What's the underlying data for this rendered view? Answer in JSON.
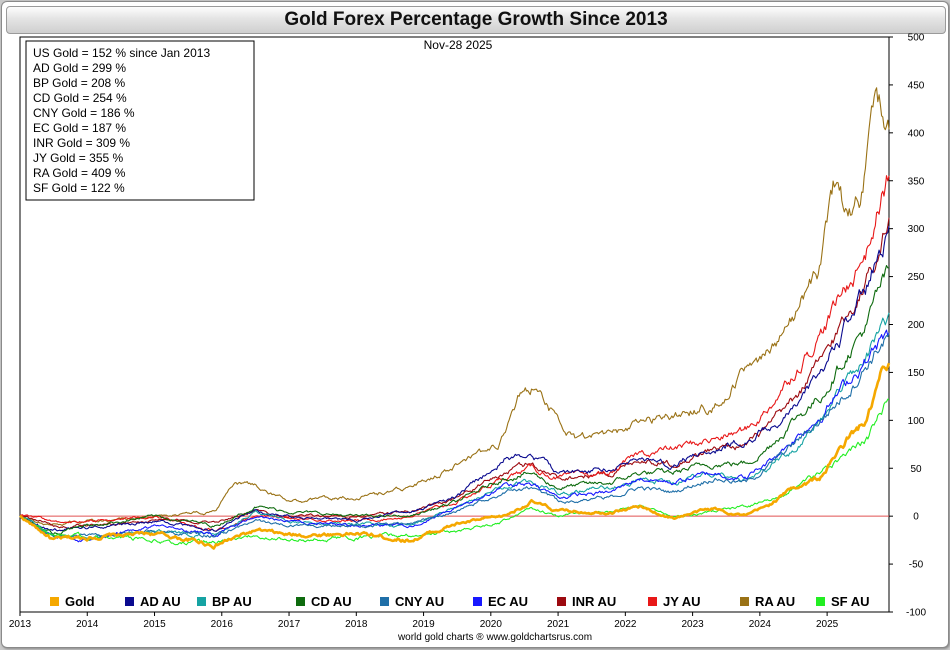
{
  "chart_data": {
    "type": "line",
    "title": "Gold Forex Percentage Growth Since 2013",
    "date_label": "Nov-28  2025",
    "footer": "world gold charts ® www.goldchartsrus.com",
    "x_ticks": [
      "2013",
      "2014",
      "2015",
      "2016",
      "2017",
      "2018",
      "2019",
      "2020",
      "2021",
      "2022",
      "2023",
      "2024",
      "2025"
    ],
    "x_range": [
      2013.0,
      2025.92
    ],
    "ylim": [
      -100,
      500
    ],
    "y_ticks": [
      "500",
      "450",
      "400",
      "350",
      "300",
      "250",
      "200",
      "150",
      "100",
      "50",
      "0",
      "-50",
      "-100"
    ],
    "y_tick_values": [
      500,
      450,
      400,
      350,
      300,
      250,
      200,
      150,
      100,
      50,
      0,
      -50,
      -100
    ],
    "baseline_value": 0,
    "baseline_color": "#e05050",
    "stats": [
      "US Gold = 152 % since Jan 2013",
      "AD Gold = 299 %",
      "BP Gold = 208 %",
      "CD Gold = 254 %",
      "CNY Gold = 186 %",
      "EC Gold = 187 %",
      "INR Gold = 309 %",
      "JY Gold = 355 %",
      "RA Gold = 409 %",
      "SF Gold = 122 %"
    ],
    "series": [
      {
        "name": "Gold",
        "color": "#f5a800",
        "width": 2.6,
        "anchors": [
          [
            2013,
            0
          ],
          [
            2013.5,
            -25
          ],
          [
            2014,
            -22
          ],
          [
            2014.5,
            -20
          ],
          [
            2015,
            -18
          ],
          [
            2015.9,
            -30
          ],
          [
            2016.5,
            -15
          ],
          [
            2017,
            -20
          ],
          [
            2018,
            -18
          ],
          [
            2018.8,
            -25
          ],
          [
            2019.5,
            -8
          ],
          [
            2020.2,
            0
          ],
          [
            2020.6,
            15
          ],
          [
            2021,
            5
          ],
          [
            2021.8,
            5
          ],
          [
            2022.2,
            10
          ],
          [
            2022.7,
            -2
          ],
          [
            2023.3,
            8
          ],
          [
            2023.8,
            0
          ],
          [
            2024.1,
            10
          ],
          [
            2024.5,
            30
          ],
          [
            2024.9,
            40
          ],
          [
            2025.3,
            80
          ],
          [
            2025.6,
            100
          ],
          [
            2025.8,
            145
          ],
          [
            2025.92,
            152
          ]
        ]
      },
      {
        "name": "AD AU",
        "color": "#0a0a8f",
        "width": 1.1,
        "anchors": [
          [
            2013,
            0
          ],
          [
            2013.5,
            -15
          ],
          [
            2014,
            -12
          ],
          [
            2015,
            -5
          ],
          [
            2015.9,
            -15
          ],
          [
            2016.5,
            5
          ],
          [
            2017,
            0
          ],
          [
            2018,
            -5
          ],
          [
            2018.8,
            5
          ],
          [
            2019.5,
            20
          ],
          [
            2020.2,
            60
          ],
          [
            2020.6,
            65
          ],
          [
            2021,
            45
          ],
          [
            2021.8,
            50
          ],
          [
            2022.2,
            60
          ],
          [
            2022.7,
            55
          ],
          [
            2023.3,
            70
          ],
          [
            2023.8,
            80
          ],
          [
            2024.1,
            90
          ],
          [
            2024.5,
            110
          ],
          [
            2024.9,
            150
          ],
          [
            2025.3,
            200
          ],
          [
            2025.6,
            240
          ],
          [
            2025.8,
            280
          ],
          [
            2025.92,
            299
          ]
        ]
      },
      {
        "name": "BP AU",
        "color": "#16a3a3",
        "width": 1.1,
        "anchors": [
          [
            2013,
            0
          ],
          [
            2013.5,
            -20
          ],
          [
            2014,
            -22
          ],
          [
            2015,
            -15
          ],
          [
            2015.9,
            -20
          ],
          [
            2016.5,
            5
          ],
          [
            2017,
            -5
          ],
          [
            2018,
            -8
          ],
          [
            2018.8,
            -10
          ],
          [
            2019.5,
            10
          ],
          [
            2020.2,
            30
          ],
          [
            2020.6,
            35
          ],
          [
            2021,
            25
          ],
          [
            2021.8,
            30
          ],
          [
            2022.2,
            40
          ],
          [
            2022.7,
            35
          ],
          [
            2023.3,
            45
          ],
          [
            2023.8,
            40
          ],
          [
            2024.1,
            50
          ],
          [
            2024.5,
            70
          ],
          [
            2024.9,
            100
          ],
          [
            2025.3,
            140
          ],
          [
            2025.6,
            170
          ],
          [
            2025.8,
            200
          ],
          [
            2025.92,
            208
          ]
        ]
      },
      {
        "name": "CD AU",
        "color": "#0e6b0e",
        "width": 1.1,
        "anchors": [
          [
            2013,
            0
          ],
          [
            2013.5,
            -18
          ],
          [
            2014,
            -10
          ],
          [
            2015,
            0
          ],
          [
            2015.9,
            -10
          ],
          [
            2016.5,
            10
          ],
          [
            2017,
            5
          ],
          [
            2018,
            0
          ],
          [
            2018.8,
            0
          ],
          [
            2019.5,
            15
          ],
          [
            2020.2,
            40
          ],
          [
            2020.6,
            45
          ],
          [
            2021,
            30
          ],
          [
            2021.8,
            35
          ],
          [
            2022.2,
            45
          ],
          [
            2022.7,
            45
          ],
          [
            2023.3,
            55
          ],
          [
            2023.8,
            55
          ],
          [
            2024.1,
            70
          ],
          [
            2024.5,
            100
          ],
          [
            2024.9,
            125
          ],
          [
            2025.3,
            170
          ],
          [
            2025.6,
            200
          ],
          [
            2025.8,
            240
          ],
          [
            2025.92,
            254
          ]
        ]
      },
      {
        "name": "CNY AU",
        "color": "#1f6fa8",
        "width": 1.1,
        "anchors": [
          [
            2013,
            0
          ],
          [
            2013.5,
            -22
          ],
          [
            2014,
            -20
          ],
          [
            2015,
            -15
          ],
          [
            2015.9,
            -20
          ],
          [
            2016.5,
            -5
          ],
          [
            2017,
            -10
          ],
          [
            2018,
            -10
          ],
          [
            2018.8,
            -8
          ],
          [
            2019.5,
            5
          ],
          [
            2020.2,
            25
          ],
          [
            2020.6,
            30
          ],
          [
            2021,
            15
          ],
          [
            2021.8,
            20
          ],
          [
            2022.2,
            30
          ],
          [
            2022.7,
            25
          ],
          [
            2023.3,
            40
          ],
          [
            2023.8,
            35
          ],
          [
            2024.1,
            50
          ],
          [
            2024.5,
            75
          ],
          [
            2024.9,
            100
          ],
          [
            2025.3,
            130
          ],
          [
            2025.6,
            160
          ],
          [
            2025.8,
            180
          ],
          [
            2025.92,
            186
          ]
        ]
      },
      {
        "name": "EC AU",
        "color": "#1818ff",
        "width": 1.1,
        "anchors": [
          [
            2013,
            0
          ],
          [
            2013.5,
            -22
          ],
          [
            2014,
            -25
          ],
          [
            2015,
            -10
          ],
          [
            2015.9,
            -20
          ],
          [
            2016.5,
            0
          ],
          [
            2017,
            -5
          ],
          [
            2018,
            -10
          ],
          [
            2018.8,
            -10
          ],
          [
            2019.5,
            10
          ],
          [
            2020.2,
            30
          ],
          [
            2020.6,
            35
          ],
          [
            2021,
            20
          ],
          [
            2021.8,
            25
          ],
          [
            2022.2,
            40
          ],
          [
            2022.7,
            35
          ],
          [
            2023.3,
            45
          ],
          [
            2023.8,
            40
          ],
          [
            2024.1,
            55
          ],
          [
            2024.5,
            80
          ],
          [
            2024.9,
            105
          ],
          [
            2025.3,
            140
          ],
          [
            2025.6,
            165
          ],
          [
            2025.8,
            182
          ],
          [
            2025.92,
            187
          ]
        ]
      },
      {
        "name": "INR AU",
        "color": "#9c0a10",
        "width": 1.1,
        "anchors": [
          [
            2013,
            0
          ],
          [
            2013.5,
            -10
          ],
          [
            2014,
            -10
          ],
          [
            2015,
            -5
          ],
          [
            2015.9,
            -5
          ],
          [
            2016.5,
            5
          ],
          [
            2017,
            0
          ],
          [
            2018,
            0
          ],
          [
            2018.8,
            5
          ],
          [
            2019.5,
            20
          ],
          [
            2020.2,
            45
          ],
          [
            2020.6,
            55
          ],
          [
            2021,
            40
          ],
          [
            2021.8,
            45
          ],
          [
            2022.2,
            60
          ],
          [
            2022.7,
            55
          ],
          [
            2023.3,
            70
          ],
          [
            2023.8,
            75
          ],
          [
            2024.1,
            90
          ],
          [
            2024.5,
            120
          ],
          [
            2024.9,
            160
          ],
          [
            2025.3,
            210
          ],
          [
            2025.6,
            250
          ],
          [
            2025.8,
            290
          ],
          [
            2025.92,
            309
          ]
        ]
      },
      {
        "name": "JY AU",
        "color": "#e81818",
        "width": 1.1,
        "anchors": [
          [
            2013,
            0
          ],
          [
            2013.5,
            -5
          ],
          [
            2014,
            -5
          ],
          [
            2015,
            0
          ],
          [
            2015.9,
            -15
          ],
          [
            2016.5,
            0
          ],
          [
            2017,
            -2
          ],
          [
            2018,
            -5
          ],
          [
            2018.8,
            0
          ],
          [
            2019.5,
            15
          ],
          [
            2020.2,
            40
          ],
          [
            2020.6,
            50
          ],
          [
            2021,
            40
          ],
          [
            2021.8,
            45
          ],
          [
            2022.2,
            65
          ],
          [
            2022.7,
            70
          ],
          [
            2023.3,
            80
          ],
          [
            2023.8,
            90
          ],
          [
            2024.1,
            110
          ],
          [
            2024.5,
            150
          ],
          [
            2024.9,
            190
          ],
          [
            2025.3,
            240
          ],
          [
            2025.6,
            280
          ],
          [
            2025.8,
            330
          ],
          [
            2025.92,
            355
          ]
        ]
      },
      {
        "name": "RA AU",
        "color": "#9a7216",
        "width": 1.1,
        "anchors": [
          [
            2013,
            0
          ],
          [
            2013.5,
            -10
          ],
          [
            2014,
            -5
          ],
          [
            2015,
            0
          ],
          [
            2015.9,
            5
          ],
          [
            2016.2,
            35
          ],
          [
            2016.6,
            30
          ],
          [
            2017,
            15
          ],
          [
            2018,
            20
          ],
          [
            2018.8,
            30
          ],
          [
            2019.3,
            45
          ],
          [
            2019.7,
            60
          ],
          [
            2020.1,
            70
          ],
          [
            2020.4,
            120
          ],
          [
            2020.6,
            135
          ],
          [
            2020.9,
            110
          ],
          [
            2021.3,
            80
          ],
          [
            2021.8,
            85
          ],
          [
            2022.2,
            100
          ],
          [
            2022.7,
            105
          ],
          [
            2023.3,
            115
          ],
          [
            2023.8,
            150
          ],
          [
            2024.1,
            170
          ],
          [
            2024.5,
            210
          ],
          [
            2024.9,
            260
          ],
          [
            2025.1,
            340
          ],
          [
            2025.3,
            310
          ],
          [
            2025.5,
            330
          ],
          [
            2025.7,
            420
          ],
          [
            2025.92,
            409
          ]
        ]
      },
      {
        "name": "SF AU",
        "color": "#22ee22",
        "width": 1.1,
        "anchors": [
          [
            2013,
            0
          ],
          [
            2013.5,
            -20
          ],
          [
            2014,
            -22
          ],
          [
            2015,
            -25
          ],
          [
            2015.9,
            -28
          ],
          [
            2016.5,
            -20
          ],
          [
            2017,
            -25
          ],
          [
            2018,
            -22
          ],
          [
            2018.8,
            -20
          ],
          [
            2019.5,
            -15
          ],
          [
            2020.2,
            -5
          ],
          [
            2020.6,
            10
          ],
          [
            2021,
            0
          ],
          [
            2021.8,
            5
          ],
          [
            2022.2,
            10
          ],
          [
            2022.7,
            0
          ],
          [
            2023.3,
            5
          ],
          [
            2023.8,
            10
          ],
          [
            2024.1,
            15
          ],
          [
            2024.5,
            30
          ],
          [
            2024.9,
            45
          ],
          [
            2025.3,
            65
          ],
          [
            2025.6,
            80
          ],
          [
            2025.8,
            110
          ],
          [
            2025.92,
            122
          ]
        ]
      }
    ]
  }
}
